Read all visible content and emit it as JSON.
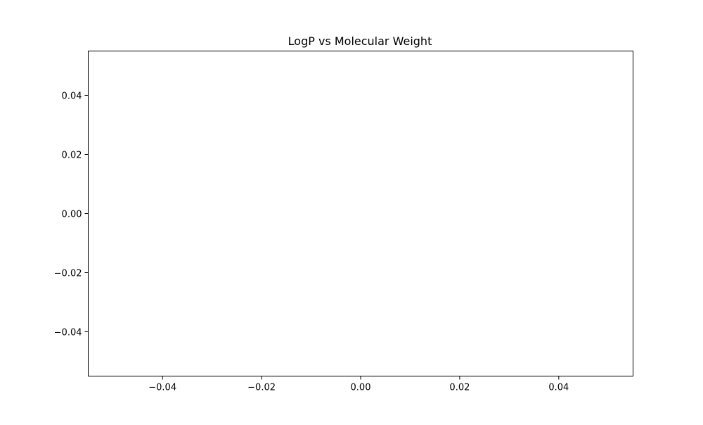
{
  "chart_data": {
    "type": "scatter",
    "title": "LogP vs Molecular Weight",
    "xlabel": "",
    "ylabel": "",
    "xlim": [
      -0.055,
      0.055
    ],
    "ylim": [
      -0.055,
      0.055
    ],
    "x_ticks": [
      -0.04,
      -0.02,
      0.0,
      0.02,
      0.04
    ],
    "y_ticks": [
      -0.04,
      -0.02,
      0.0,
      0.02,
      0.04
    ],
    "x_tick_labels": [
      "−0.04",
      "−0.02",
      "0.00",
      "0.02",
      "0.04"
    ],
    "y_tick_labels": [
      "−0.04",
      "−0.02",
      "0.00",
      "0.02",
      "0.04"
    ],
    "series": [
      {
        "x": [],
        "y": []
      }
    ],
    "grid": false,
    "legend": "none"
  }
}
